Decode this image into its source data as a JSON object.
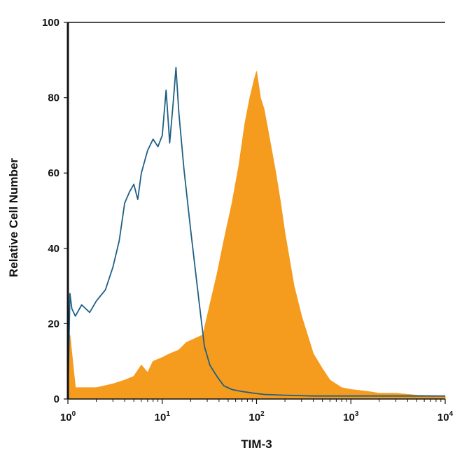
{
  "chart_data": {
    "type": "area",
    "title": "",
    "xlabel": "TIM-3",
    "ylabel": "Relative Cell Number",
    "xscale": "log",
    "xlim": [
      1,
      10000
    ],
    "ylim": [
      0,
      100
    ],
    "grid": false,
    "x_ticks": [
      {
        "base": "10",
        "exp": "0",
        "value": 1
      },
      {
        "base": "10",
        "exp": "1",
        "value": 10
      },
      {
        "base": "10",
        "exp": "2",
        "value": 100
      },
      {
        "base": "10",
        "exp": "3",
        "value": 1000
      },
      {
        "base": "10",
        "exp": "4",
        "value": 10000
      }
    ],
    "y_ticks": [
      "0",
      "20",
      "40",
      "60",
      "80",
      "100"
    ],
    "series": [
      {
        "color": "#f59b1d",
        "style": "filled",
        "x": [
          1,
          1.05,
          1.2,
          1.5,
          2,
          3,
          4,
          5,
          6,
          7,
          8,
          10,
          12,
          15,
          18,
          22,
          27,
          32,
          38,
          45,
          55,
          65,
          75,
          85,
          95,
          100,
          110,
          120,
          140,
          160,
          180,
          200,
          250,
          300,
          400,
          500,
          600,
          800,
          1000,
          1500,
          2000,
          3000,
          5000,
          10000
        ],
        "y": [
          0,
          17,
          3,
          3,
          3,
          4,
          5,
          6,
          9,
          7,
          10,
          11,
          12,
          13,
          15,
          16,
          17,
          25,
          33,
          42,
          52,
          62,
          73,
          80,
          85,
          87,
          80,
          77,
          68,
          60,
          52,
          44,
          30,
          22,
          12,
          8,
          5,
          3,
          2.5,
          2,
          1.5,
          1.5,
          1,
          0.8
        ]
      },
      {
        "color": "#1f5f86",
        "style": "line",
        "x": [
          1,
          1.05,
          1.1,
          1.2,
          1.4,
          1.7,
          2,
          2.5,
          3,
          3.5,
          4,
          4.5,
          5,
          5.5,
          6,
          7,
          8,
          9,
          10,
          11,
          12,
          13,
          14,
          15,
          17,
          20,
          24,
          28,
          32,
          38,
          45,
          55,
          70,
          90,
          120,
          200,
          400,
          1000,
          3000,
          10000
        ],
        "y": [
          0,
          28,
          24,
          22,
          25,
          23,
          26,
          29,
          35,
          42,
          52,
          55,
          57,
          53,
          60,
          66,
          69,
          67,
          70,
          82,
          68,
          78,
          88,
          76,
          61,
          45,
          28,
          14,
          9,
          6,
          3.5,
          2.5,
          2,
          1.6,
          1.2,
          1,
          0.8,
          0.8,
          0.8,
          0.8
        ]
      }
    ]
  }
}
